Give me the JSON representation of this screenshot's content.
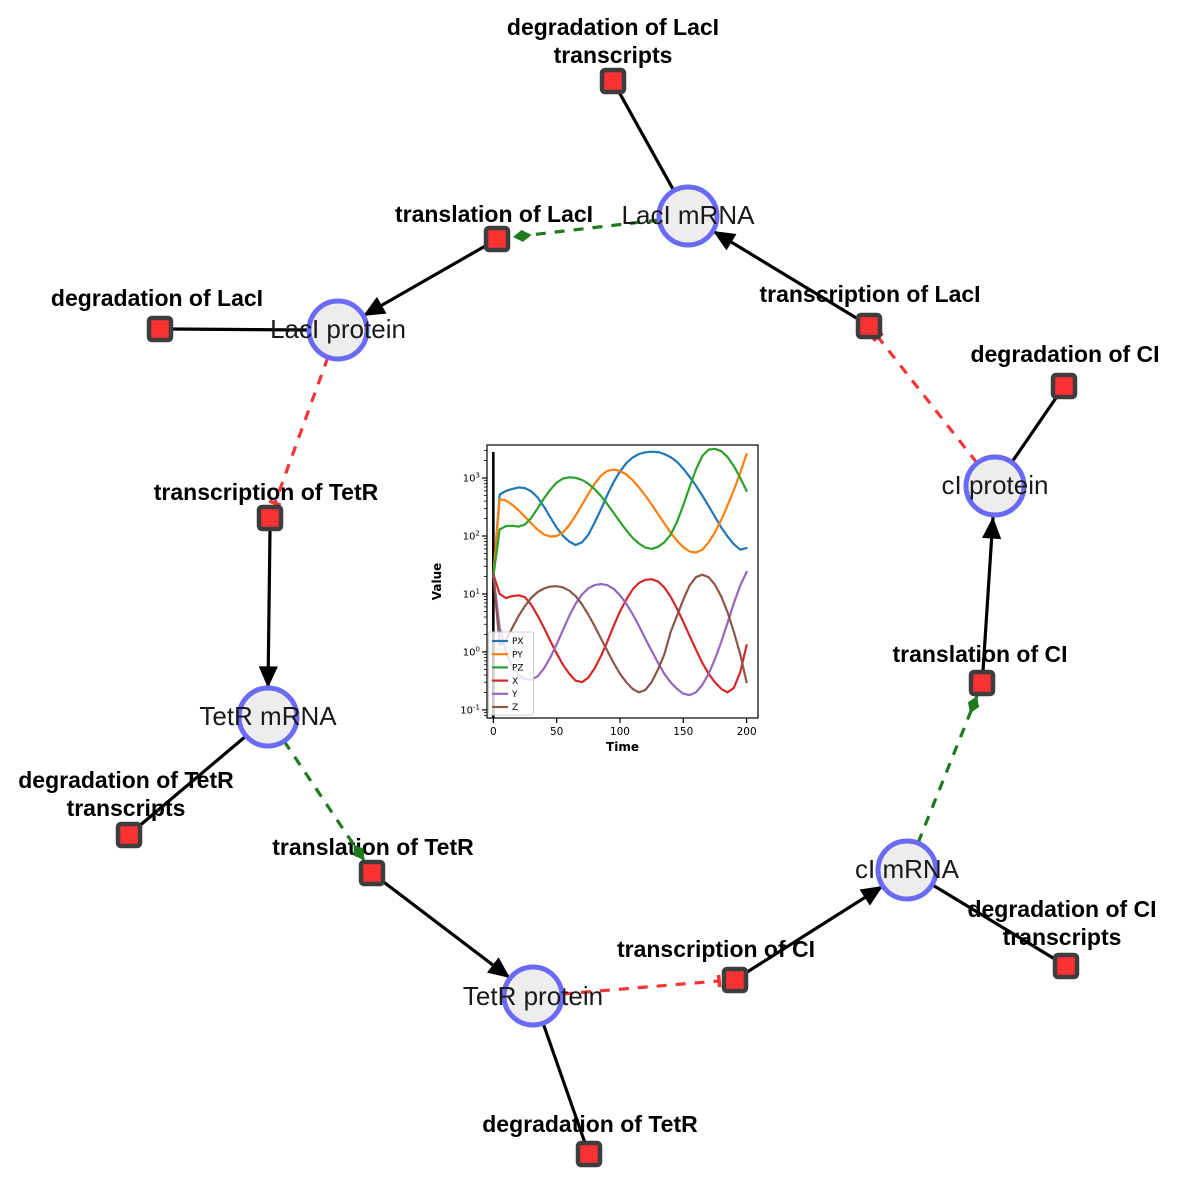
{
  "theme": {
    "background": "#ffffff",
    "species_fill": "#ededed",
    "species_stroke": "#6a6af5",
    "reaction_fill": "#fa3232",
    "reaction_stroke": "#3d3d3d",
    "edge_color": "#000000",
    "modifier_color": "#1d7a1d",
    "inhibition_color": "#f23535",
    "label_color": "#000000"
  },
  "network": {
    "species": [
      {
        "id": "laci-mrna",
        "label": "LacI mRNA"
      },
      {
        "id": "laci-protein",
        "label": "LacI protein"
      },
      {
        "id": "tetr-mrna",
        "label": "TetR mRNA"
      },
      {
        "id": "tetr-protein",
        "label": "TetR protein"
      },
      {
        "id": "ci-mrna",
        "label": "cI mRNA"
      },
      {
        "id": "ci-protein",
        "label": "cI protein"
      }
    ],
    "reactions": [
      {
        "id": "degradation-of-laci-transcripts",
        "lines": [
          "degradation of LacI",
          "transcripts"
        ]
      },
      {
        "id": "translation-of-laci",
        "lines": [
          "translation of LacI"
        ]
      },
      {
        "id": "degradation-of-laci",
        "lines": [
          "degradation of LacI"
        ]
      },
      {
        "id": "transcription-of-tetr",
        "lines": [
          "transcription of TetR"
        ]
      },
      {
        "id": "transcription-of-laci",
        "lines": [
          "transcription of LacI"
        ]
      },
      {
        "id": "degradation-of-ci",
        "lines": [
          "degradation of CI"
        ]
      },
      {
        "id": "translation-of-ci",
        "lines": [
          "translation of CI"
        ]
      },
      {
        "id": "transcription-of-ci",
        "lines": [
          "transcription of CI"
        ]
      },
      {
        "id": "degradation-of-ci-transcripts",
        "lines": [
          "degradation of CI",
          "transcripts"
        ]
      },
      {
        "id": "translation-of-tetr",
        "lines": [
          "translation of TetR"
        ]
      },
      {
        "id": "degradation-of-tetr-transcripts",
        "lines": [
          "degradation of TetR",
          "transcripts"
        ]
      },
      {
        "id": "degradation-of-tetr",
        "lines": [
          "degradation of TetR"
        ]
      }
    ],
    "edges": [
      {
        "from": "LacI mRNA",
        "to": "degradation of LacI transcripts",
        "type": "consumption"
      },
      {
        "from": "translation of LacI",
        "to": "LacI protein",
        "type": "production"
      },
      {
        "from": "LacI mRNA",
        "to": "translation of LacI",
        "type": "modifier"
      },
      {
        "from": "transcription of LacI",
        "to": "LacI mRNA",
        "type": "production"
      },
      {
        "from": "cI protein",
        "to": "transcription of LacI",
        "type": "inhibition"
      },
      {
        "from": "LacI protein",
        "to": "degradation of LacI",
        "type": "consumption"
      },
      {
        "from": "LacI protein",
        "to": "transcription of TetR",
        "type": "inhibition"
      },
      {
        "from": "transcription of TetR",
        "to": "TetR mRNA",
        "type": "production"
      },
      {
        "from": "TetR mRNA",
        "to": "degradation of TetR transcripts",
        "type": "consumption"
      },
      {
        "from": "TetR mRNA",
        "to": "translation of TetR",
        "type": "modifier"
      },
      {
        "from": "translation of TetR",
        "to": "TetR protein",
        "type": "production"
      },
      {
        "from": "TetR protein",
        "to": "degradation of TetR",
        "type": "consumption"
      },
      {
        "from": "TetR protein",
        "to": "transcription of CI",
        "type": "inhibition"
      },
      {
        "from": "transcription of CI",
        "to": "cI mRNA",
        "type": "production"
      },
      {
        "from": "cI mRNA",
        "to": "degradation of CI transcripts",
        "type": "consumption"
      },
      {
        "from": "cI mRNA",
        "to": "translation of CI",
        "type": "modifier"
      },
      {
        "from": "translation of CI",
        "to": "cI protein",
        "type": "production"
      },
      {
        "from": "cI protein",
        "to": "degradation of CI",
        "type": "consumption"
      }
    ]
  },
  "chart_data": {
    "type": "line",
    "title": "",
    "xlabel": "Time",
    "ylabel": "Value",
    "x_ticks": [
      0,
      50,
      100,
      150,
      200
    ],
    "xlim": [
      -5,
      209
    ],
    "y_scale": "log",
    "y_tick_exponents": [
      3,
      2,
      1,
      0,
      -1
    ],
    "ylim_log": [
      -1.14,
      3.57
    ],
    "vline_x": 0,
    "grid": false,
    "legend_position": "lower left",
    "x": [
      0,
      5,
      10,
      15,
      20,
      25,
      30,
      35,
      40,
      45,
      50,
      55,
      60,
      65,
      70,
      75,
      80,
      85,
      90,
      95,
      100,
      105,
      110,
      115,
      120,
      125,
      130,
      135,
      140,
      145,
      150,
      155,
      160,
      165,
      170,
      175,
      180,
      185,
      190,
      195,
      200
    ],
    "series": [
      {
        "name": "PX",
        "color": "#1f77b4",
        "values": [
          20,
          520,
          600,
          650,
          690,
          670,
          590,
          460,
          320,
          210,
          140,
          100,
          80,
          70,
          78,
          105,
          170,
          290,
          510,
          850,
          1300,
          1800,
          2250,
          2600,
          2780,
          2850,
          2800,
          2600,
          2300,
          1900,
          1450,
          1050,
          740,
          500,
          330,
          215,
          140,
          98,
          72,
          58,
          62
        ]
      },
      {
        "name": "PY",
        "color": "#ff7f0e",
        "values": [
          20,
          430,
          410,
          345,
          275,
          215,
          165,
          128,
          106,
          98,
          100,
          115,
          155,
          225,
          345,
          530,
          800,
          1100,
          1330,
          1400,
          1330,
          1150,
          920,
          690,
          500,
          350,
          240,
          165,
          115,
          83,
          64,
          54,
          52,
          58,
          78,
          115,
          190,
          340,
          620,
          1250,
          2600
        ]
      },
      {
        "name": "PZ",
        "color": "#2ca02c",
        "values": [
          20,
          130,
          148,
          150,
          145,
          158,
          205,
          300,
          445,
          630,
          830,
          980,
          1030,
          1010,
          930,
          800,
          645,
          490,
          355,
          250,
          175,
          125,
          93,
          74,
          63,
          60,
          65,
          78,
          105,
          175,
          340,
          700,
          1400,
          2400,
          3100,
          3200,
          2900,
          2300,
          1600,
          1000,
          600
        ]
      },
      {
        "name": "X",
        "color": "#d62728",
        "values": [
          22,
          10,
          8.5,
          9.2,
          9.5,
          8.8,
          6.5,
          4.2,
          2.6,
          1.55,
          0.95,
          0.6,
          0.42,
          0.32,
          0.3,
          0.36,
          0.52,
          0.85,
          1.5,
          2.8,
          5,
          8,
          12,
          15.5,
          17.5,
          18,
          16.5,
          13,
          9,
          5.6,
          3.3,
          1.9,
          1.1,
          0.65,
          0.42,
          0.3,
          0.23,
          0.2,
          0.24,
          0.45,
          1.3
        ]
      },
      {
        "name": "Y",
        "color": "#9467bd",
        "values": [
          22,
          2.6,
          1,
          0.55,
          0.4,
          0.34,
          0.33,
          0.38,
          0.52,
          0.8,
          1.35,
          2.4,
          4.2,
          6.8,
          9.8,
          12.5,
          14.2,
          14.8,
          14.2,
          12.3,
          9.5,
          6.8,
          4.5,
          2.8,
          1.7,
          1.05,
          0.65,
          0.42,
          0.3,
          0.23,
          0.19,
          0.18,
          0.2,
          0.27,
          0.42,
          0.75,
          1.5,
          3.2,
          7,
          14,
          24
        ]
      },
      {
        "name": "Z",
        "color": "#8c564b",
        "values": [
          22,
          1.3,
          1.6,
          2.6,
          4.2,
          6.2,
          8.6,
          10.8,
          12.4,
          13.4,
          13.6,
          13,
          11.4,
          9.2,
          6.6,
          4.4,
          2.8,
          1.7,
          1.05,
          0.65,
          0.42,
          0.3,
          0.23,
          0.2,
          0.22,
          0.3,
          0.5,
          0.9,
          2.2,
          4.2,
          8,
          14,
          19.5,
          21.5,
          19.5,
          14.5,
          9,
          4.8,
          2.2,
          0.9,
          0.3
        ]
      }
    ]
  }
}
